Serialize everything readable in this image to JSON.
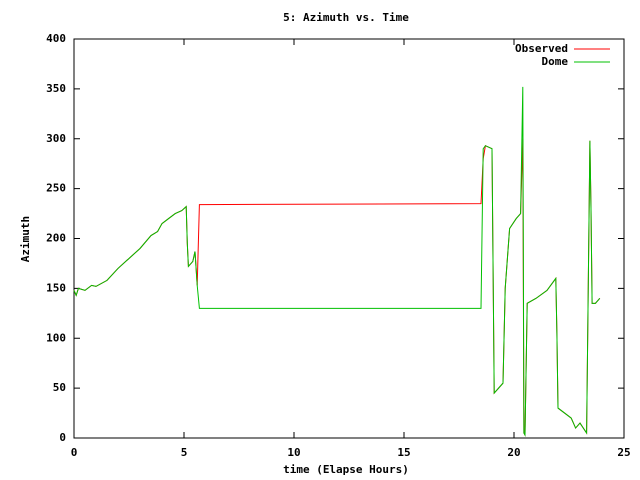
{
  "chart_data": {
    "type": "line",
    "title": "5: Azimuth vs. Time",
    "x_label": "time (Elapse Hours)",
    "y_label": "Azimuth",
    "x": [
      0,
      0.1,
      0.2,
      0.5,
      0.8,
      1.0,
      1.5,
      2.0,
      2.5,
      3.0,
      3.5,
      3.8,
      4.0,
      4.3,
      4.6,
      4.9,
      5.1,
      5.15,
      5.2,
      5.4,
      5.5,
      5.6,
      5.7,
      18.5,
      18.6,
      18.7,
      19.0,
      19.1,
      19.3,
      19.5,
      19.6,
      19.8,
      20.1,
      20.3,
      20.4,
      20.45,
      20.5,
      20.6,
      21.0,
      21.5,
      21.9,
      21.95,
      22.0,
      22.3,
      22.6,
      22.8,
      23.0,
      23.3,
      23.45,
      23.5,
      23.55,
      23.7,
      23.9
    ],
    "series": [
      {
        "name": "Observed",
        "color": "#ff0000",
        "values": [
          148,
          143,
          150,
          148,
          153,
          152,
          158,
          170,
          180,
          190,
          203,
          207,
          215,
          220,
          225,
          228,
          232,
          195,
          172,
          177,
          187,
          153,
          234,
          235,
          280,
          293,
          290,
          45,
          50,
          55,
          150,
          210,
          220,
          225,
          300,
          5,
          3,
          135,
          140,
          148,
          160,
          105,
          30,
          25,
          20,
          10,
          15,
          5,
          298,
          230,
          135,
          135,
          140
        ]
      },
      {
        "name": "Dome",
        "color": "#00c000",
        "values": [
          148,
          143,
          150,
          148,
          153,
          152,
          158,
          170,
          180,
          190,
          203,
          207,
          215,
          220,
          225,
          228,
          232,
          195,
          172,
          177,
          187,
          153,
          130,
          130,
          290,
          293,
          290,
          45,
          50,
          55,
          150,
          210,
          220,
          225,
          352,
          5,
          3,
          135,
          140,
          148,
          160,
          105,
          30,
          25,
          20,
          10,
          15,
          5,
          298,
          230,
          135,
          135,
          140
        ]
      }
    ],
    "xlim": [
      0,
      25
    ],
    "xticks": [
      0,
      5,
      10,
      15,
      20,
      25
    ],
    "ylim": [
      0,
      400
    ],
    "yticks": [
      0,
      50,
      100,
      150,
      200,
      250,
      300,
      350,
      400
    ],
    "legend": "top-right"
  }
}
